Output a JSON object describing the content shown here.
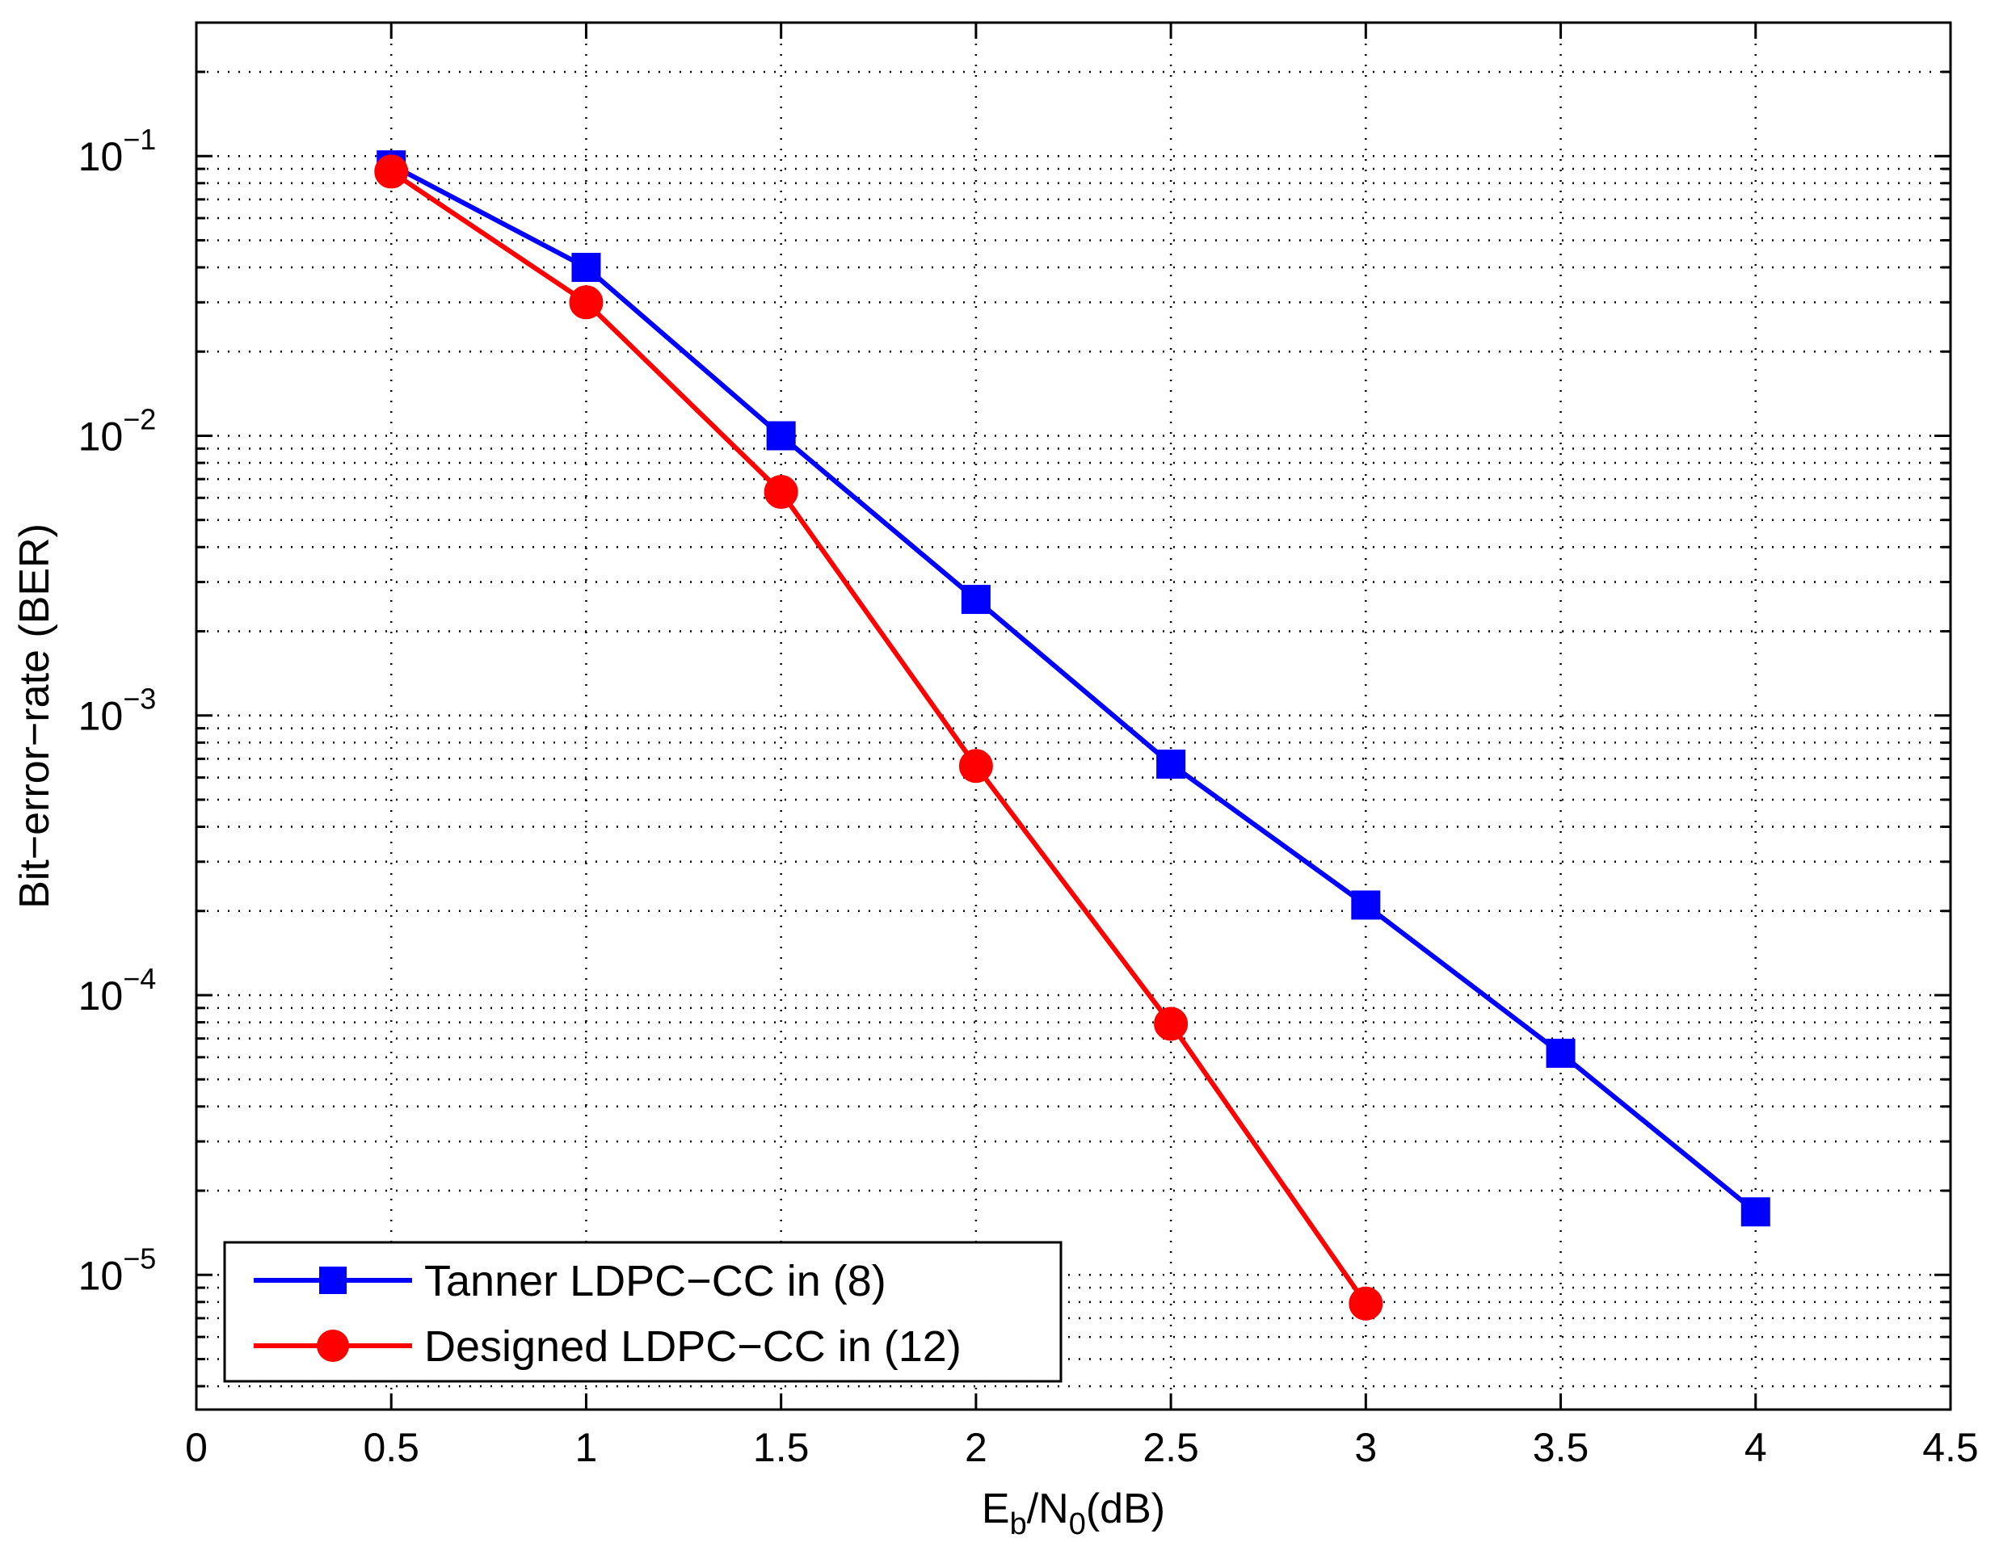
{
  "chart_data": {
    "type": "line",
    "xlabel": {
      "main": "E",
      "sub1": "b",
      "mid": "/N",
      "sub2": "0",
      "tail": "(dB)"
    },
    "ylabel": "Bit−error−rate (BER)",
    "xlim": [
      0,
      4.5
    ],
    "ylim": [
      3.3e-06,
      0.3
    ],
    "yscale": "log",
    "grid": true,
    "x_ticks": [
      "0",
      "0.5",
      "1",
      "1.5",
      "2",
      "2.5",
      "3",
      "3.5",
      "4",
      "4.5"
    ],
    "y_ticks": [
      {
        "value": 0.1,
        "base": "10",
        "exp": "−1"
      },
      {
        "value": 0.01,
        "base": "10",
        "exp": "−2"
      },
      {
        "value": 0.001,
        "base": "10",
        "exp": "−3"
      },
      {
        "value": 0.0001,
        "base": "10",
        "exp": "−4"
      },
      {
        "value": 1e-05,
        "base": "10",
        "exp": "−5"
      }
    ],
    "legend_position": "bottom-left",
    "series": [
      {
        "name": "Tanner LDPC−CC in (8)",
        "color": "#0000ff",
        "marker": "square",
        "x": [
          0.5,
          1,
          1.5,
          2,
          2.5,
          3,
          3.5,
          4
        ],
        "y": [
          0.093,
          0.04,
          0.01,
          0.0026,
          0.00067,
          0.00021,
          6.2e-05,
          1.68e-05
        ]
      },
      {
        "name": "Designed LDPC−CC in (12)",
        "color": "#ff0000",
        "marker": "circle",
        "x": [
          0.5,
          1,
          1.5,
          2,
          2.5,
          3
        ],
        "y": [
          0.088,
          0.03,
          0.0063,
          0.00066,
          7.9e-05,
          7.9e-06
        ]
      }
    ]
  }
}
